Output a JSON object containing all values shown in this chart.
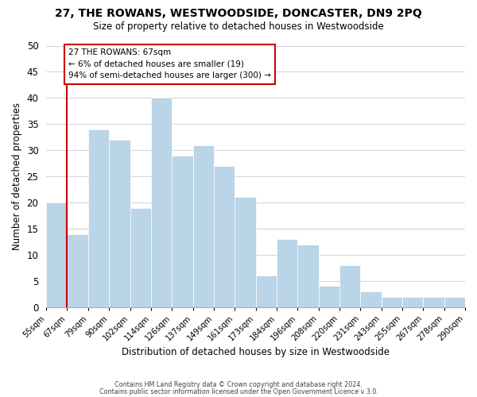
{
  "title": "27, THE ROWANS, WESTWOODSIDE, DONCASTER, DN9 2PQ",
  "subtitle": "Size of property relative to detached houses in Westwoodside",
  "xlabel": "Distribution of detached houses by size in Westwoodside",
  "ylabel": "Number of detached properties",
  "bar_color": "#bad4e8",
  "highlight_color": "#cc0000",
  "background_color": "#ffffff",
  "grid_color": "#d0d8e0",
  "bin_labels": [
    "55sqm",
    "67sqm",
    "79sqm",
    "90sqm",
    "102sqm",
    "114sqm",
    "126sqm",
    "137sqm",
    "149sqm",
    "161sqm",
    "173sqm",
    "184sqm",
    "196sqm",
    "208sqm",
    "220sqm",
    "231sqm",
    "243sqm",
    "255sqm",
    "267sqm",
    "278sqm",
    "290sqm"
  ],
  "bar_heights": [
    20,
    14,
    34,
    32,
    19,
    40,
    29,
    31,
    27,
    21,
    6,
    13,
    12,
    4,
    8,
    3,
    2,
    2,
    2,
    2
  ],
  "highlight_bar_index": 1,
  "ylim": [
    0,
    50
  ],
  "yticks": [
    0,
    5,
    10,
    15,
    20,
    25,
    30,
    35,
    40,
    45,
    50
  ],
  "annotation_title": "27 THE ROWANS: 67sqm",
  "annotation_line1": "← 6% of detached houses are smaller (19)",
  "annotation_line2": "94% of semi-detached houses are larger (300) →",
  "footer_line1": "Contains HM Land Registry data © Crown copyright and database right 2024.",
  "footer_line2": "Contains public sector information licensed under the Open Government Licence v 3.0."
}
